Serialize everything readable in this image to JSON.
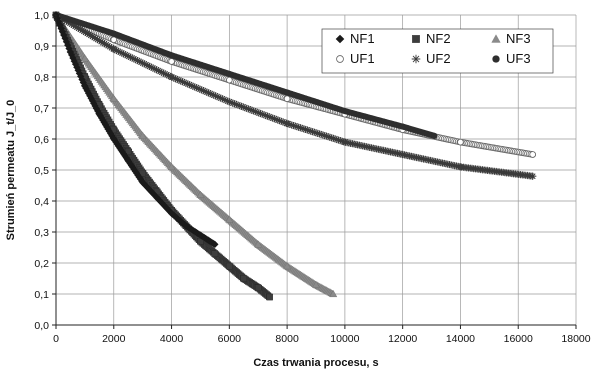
{
  "chart_data": {
    "type": "scatter",
    "title": "",
    "xlabel": "Czas trwania procesu, s",
    "ylabel": "Strumień permeatu J_t/J_0",
    "xlim": [
      0,
      18000
    ],
    "ylim": [
      0.0,
      1.0
    ],
    "x_ticks": [
      0,
      2000,
      4000,
      6000,
      8000,
      10000,
      12000,
      14000,
      16000,
      18000
    ],
    "y_ticks": [
      0.0,
      0.1,
      0.2,
      0.3,
      0.4,
      0.5,
      0.6,
      0.7,
      0.8,
      0.9,
      1.0
    ],
    "x_tick_labels": [
      "0",
      "2000",
      "4000",
      "6000",
      "8000",
      "10000",
      "12000",
      "14000",
      "16000",
      "18000"
    ],
    "y_tick_labels": [
      "0,0",
      "0,1",
      "0,2",
      "0,3",
      "0,4",
      "0,5",
      "0,6",
      "0,7",
      "0,8",
      "0,9",
      "1,0"
    ],
    "grid": "horizontal",
    "legend_position": "top-right",
    "series": [
      {
        "name": "NF1",
        "marker": "diamond",
        "color": "#1a1a1a",
        "x": [
          0,
          500,
          1000,
          1500,
          2000,
          2500,
          3000,
          3500,
          4000,
          4500,
          5000,
          5500
        ],
        "y": [
          1.0,
          0.88,
          0.77,
          0.68,
          0.6,
          0.53,
          0.46,
          0.41,
          0.36,
          0.32,
          0.29,
          0.26
        ]
      },
      {
        "name": "NF2",
        "marker": "square",
        "color": "#3d3d3d",
        "x": [
          0,
          500,
          1000,
          1500,
          2000,
          2500,
          3000,
          3500,
          4000,
          4500,
          5000,
          5500,
          6000,
          6500,
          7000,
          7400
        ],
        "y": [
          1.0,
          0.9,
          0.8,
          0.71,
          0.63,
          0.56,
          0.49,
          0.43,
          0.37,
          0.32,
          0.27,
          0.23,
          0.19,
          0.15,
          0.12,
          0.09
        ]
      },
      {
        "name": "NF3",
        "marker": "triangle",
        "color": "#8a8a8a",
        "x": [
          0,
          1000,
          2000,
          3000,
          4000,
          5000,
          6000,
          7000,
          8000,
          9000,
          9600
        ],
        "y": [
          1.0,
          0.86,
          0.73,
          0.61,
          0.51,
          0.42,
          0.34,
          0.26,
          0.19,
          0.13,
          0.1
        ]
      },
      {
        "name": "UF1",
        "marker": "circle-open",
        "color": "#666666",
        "x": [
          0,
          2000,
          4000,
          6000,
          8000,
          10000,
          12000,
          14000,
          16500
        ],
        "y": [
          1.0,
          0.92,
          0.85,
          0.79,
          0.73,
          0.68,
          0.63,
          0.59,
          0.55
        ]
      },
      {
        "name": "UF2",
        "marker": "star",
        "color": "#3a3a3a",
        "x": [
          0,
          2000,
          4000,
          6000,
          8000,
          10000,
          12000,
          14000,
          16500
        ],
        "y": [
          1.0,
          0.89,
          0.8,
          0.72,
          0.65,
          0.59,
          0.55,
          0.51,
          0.48
        ]
      },
      {
        "name": "UF3",
        "marker": "circle",
        "color": "#2e2e2e",
        "x": [
          0,
          2000,
          4000,
          6000,
          8000,
          10000,
          12000,
          13100
        ],
        "y": [
          1.0,
          0.94,
          0.87,
          0.81,
          0.75,
          0.69,
          0.64,
          0.61
        ]
      }
    ]
  }
}
